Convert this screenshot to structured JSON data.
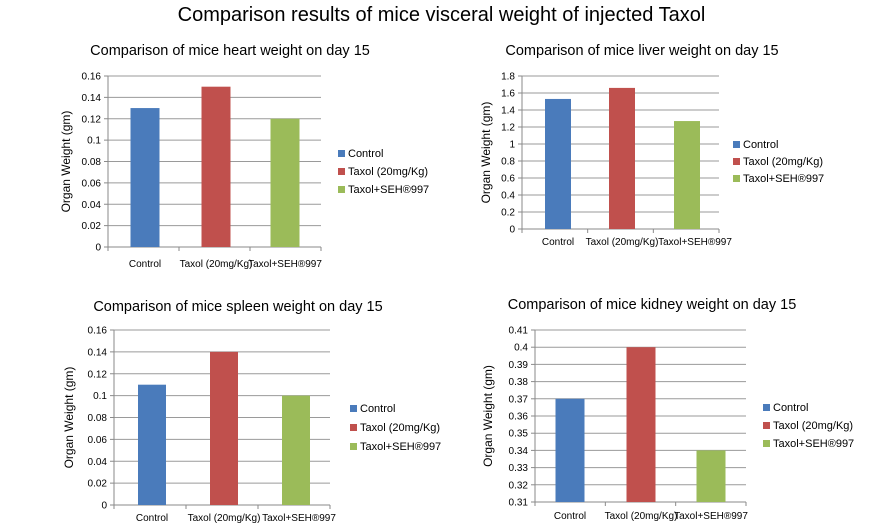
{
  "page_title": "Comparison results of mice visceral weight of injected Taxol",
  "colors": {
    "Control": "#4a7bbb",
    "Taxol (20mg/Kg)": "#c0504d",
    "Taxol+SEH®997": "#9bbb59"
  },
  "chart_data": [
    {
      "type": "bar",
      "title": "Comparison of mice heart weight on day 15",
      "ylabel": "Organ Weight (gm)",
      "xlabel": "",
      "categories": [
        "Control",
        "Taxol (20mg/Kg)",
        "Taxol+SEH®997"
      ],
      "values": [
        0.13,
        0.15,
        0.12
      ],
      "ylim": [
        0,
        0.16
      ],
      "yticks": [
        "0",
        "0.02",
        "0.04",
        "0.06",
        "0.08",
        "0.1",
        "0.12",
        "0.14",
        "0.16"
      ],
      "grid": true,
      "legend": [
        "Control",
        "Taxol (20mg/Kg)",
        "Taxol+SEH®997"
      ],
      "legend_position": "right"
    },
    {
      "type": "bar",
      "title": "Comparison of mice liver weight on day 15",
      "ylabel": "Organ Weight (gm)",
      "xlabel": "",
      "categories": [
        "Control",
        "Taxol (20mg/Kg)",
        "Taxol+SEH®997"
      ],
      "values": [
        1.53,
        1.66,
        1.27
      ],
      "ylim": [
        0,
        1.8
      ],
      "yticks": [
        "0",
        "0.2",
        "0.4",
        "0.6",
        "0.8",
        "1",
        "1.2",
        "1.4",
        "1.6",
        "1.8"
      ],
      "grid": true,
      "legend": [
        "Control",
        "Taxol (20mg/Kg)",
        "Taxol+SEH®997"
      ],
      "legend_position": "right"
    },
    {
      "type": "bar",
      "title": "Comparison of mice spleen weight on day 15",
      "ylabel": "Organ Weight (gm)",
      "xlabel": "",
      "categories": [
        "Control",
        "Taxol (20mg/Kg)",
        "Taxol+SEH®997"
      ],
      "values": [
        0.11,
        0.14,
        0.1
      ],
      "ylim": [
        0,
        0.16
      ],
      "yticks": [
        "0",
        "0.02",
        "0.04",
        "0.06",
        "0.08",
        "0.1",
        "0.12",
        "0.14",
        "0.16"
      ],
      "grid": true,
      "legend": [
        "Control",
        "Taxol (20mg/Kg)",
        "Taxol+SEH®997"
      ],
      "legend_position": "right"
    },
    {
      "type": "bar",
      "title": "Comparison of mice kidney weight on day 15",
      "ylabel": "Organ Weight (gm)",
      "xlabel": "",
      "categories": [
        "Control",
        "Taxol (20mg/Kg)",
        "Taxol+SEH®997"
      ],
      "values": [
        0.37,
        0.4,
        0.34
      ],
      "ylim": [
        0.31,
        0.41
      ],
      "yticks": [
        "0.31",
        "0.32",
        "0.33",
        "0.34",
        "0.35",
        "0.36",
        "0.37",
        "0.38",
        "0.39",
        "0.4",
        "0.41"
      ],
      "grid": true,
      "legend": [
        "Control",
        "Taxol (20mg/Kg)",
        "Taxol+SEH®997"
      ],
      "legend_position": "right"
    }
  ]
}
